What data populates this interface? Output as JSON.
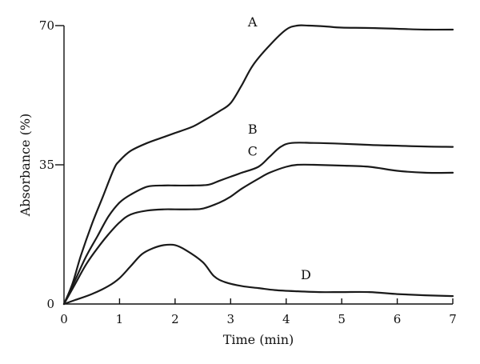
{
  "chart_data": {
    "type": "line",
    "xlabel": "Time (min)",
    "ylabel": "Absorbance (%)",
    "xlim": [
      0,
      7
    ],
    "ylim": [
      0,
      70
    ],
    "xticks": [
      "0",
      "1",
      "2",
      "3",
      "4",
      "5",
      "6",
      "7"
    ],
    "yticks": [
      "0",
      "35",
      "70"
    ],
    "grid": false,
    "line_color": "#1a1a1a",
    "series": [
      {
        "name": "A",
        "x": [
          0,
          0.15,
          0.3,
          0.5,
          0.7,
          0.9,
          1.0,
          1.2,
          1.5,
          1.8,
          2.0,
          2.3,
          2.5,
          2.8,
          3.0,
          3.2,
          3.4,
          3.7,
          4.0,
          4.2,
          4.4,
          4.7,
          5.0,
          5.5,
          6.0,
          6.5,
          7.0
        ],
        "y": [
          0,
          5,
          12,
          20,
          27,
          34,
          36,
          38.5,
          40.5,
          42,
          43,
          44.5,
          46,
          48.5,
          50.5,
          55,
          60,
          65,
          69,
          70,
          70,
          69.8,
          69.5,
          69.4,
          69.2,
          69,
          69
        ]
      },
      {
        "name": "B",
        "x": [
          0,
          0.2,
          0.4,
          0.6,
          0.8,
          1.0,
          1.2,
          1.5,
          1.8,
          2.0,
          2.3,
          2.6,
          2.8,
          3.0,
          3.2,
          3.5,
          3.7,
          3.9,
          4.1,
          4.5,
          5.0,
          5.5,
          6.0,
          6.5,
          7.0
        ],
        "y": [
          0,
          6,
          12,
          17,
          22,
          25.5,
          27.5,
          29.5,
          29.8,
          29.8,
          29.8,
          30,
          31,
          32,
          33,
          34.5,
          37,
          39.5,
          40.5,
          40.5,
          40.3,
          40,
          39.8,
          39.6,
          39.5
        ]
      },
      {
        "name": "C",
        "x": [
          0,
          0.2,
          0.4,
          0.6,
          0.8,
          1.0,
          1.2,
          1.5,
          1.8,
          2.0,
          2.3,
          2.5,
          2.8,
          3.0,
          3.2,
          3.5,
          3.7,
          4.0,
          4.2,
          4.5,
          5.0,
          5.5,
          6.0,
          6.5,
          7.0
        ],
        "y": [
          0,
          5,
          10,
          14,
          17.5,
          20.5,
          22.5,
          23.5,
          23.8,
          23.8,
          23.8,
          24,
          25.5,
          27,
          29,
          31.5,
          33,
          34.5,
          35,
          35,
          34.8,
          34.5,
          33.5,
          33,
          33
        ]
      },
      {
        "name": "D",
        "x": [
          0,
          0.2,
          0.5,
          0.8,
          1.0,
          1.2,
          1.4,
          1.6,
          1.8,
          2.0,
          2.2,
          2.5,
          2.7,
          2.9,
          3.2,
          3.5,
          3.8,
          4.2,
          4.6,
          5.0,
          5.5,
          6.0,
          6.5,
          7.0
        ],
        "y": [
          0,
          1,
          2.5,
          4.5,
          6.5,
          9.5,
          12.5,
          14,
          14.8,
          14.8,
          13.5,
          10.5,
          7,
          5.5,
          4.5,
          4,
          3.5,
          3.2,
          3,
          3,
          3,
          2.5,
          2.2,
          2
        ]
      }
    ]
  }
}
